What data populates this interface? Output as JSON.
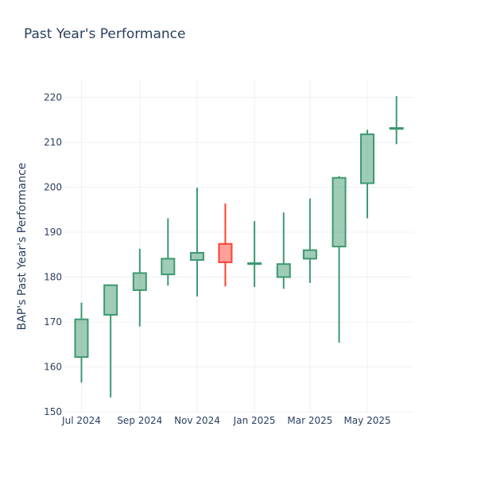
{
  "chart_data": {
    "type": "candlestick",
    "title": "Past Year's Performance",
    "xlabel": "",
    "ylabel": "BAP's Past Year's Performance",
    "ylim": [
      150,
      224
    ],
    "yticks": [
      150,
      160,
      170,
      180,
      190,
      200,
      210,
      220
    ],
    "xticks": [
      {
        "date": "2024-07-01",
        "label": "Jul 2024"
      },
      {
        "date": "2024-09-01",
        "label": "Sep 2024"
      },
      {
        "date": "2024-11-01",
        "label": "Nov 2024"
      },
      {
        "date": "2025-01-01",
        "label": "Jan 2025"
      },
      {
        "date": "2025-03-01",
        "label": "Mar 2025"
      },
      {
        "date": "2025-05-01",
        "label": "May 2025"
      }
    ],
    "xlim": [
      "2024-06-12",
      "2025-06-19"
    ],
    "grid": true,
    "increasing_color": "#3d9970",
    "decreasing_color": "#ff4136",
    "candles": [
      {
        "date": "2024-07-01",
        "open": 162.2,
        "high": 174.3,
        "low": 156.5,
        "close": 170.6
      },
      {
        "date": "2024-08-01",
        "open": 171.6,
        "high": 178.3,
        "low": 153.2,
        "close": 178.2
      },
      {
        "date": "2024-09-01",
        "open": 177.1,
        "high": 186.3,
        "low": 169.0,
        "close": 180.9
      },
      {
        "date": "2024-10-01",
        "open": 180.6,
        "high": 193.1,
        "low": 178.1,
        "close": 184.1
      },
      {
        "date": "2024-11-01",
        "open": 183.8,
        "high": 199.9,
        "low": 175.7,
        "close": 185.4
      },
      {
        "date": "2024-12-01",
        "open": 187.4,
        "high": 196.4,
        "low": 177.9,
        "close": 183.3
      },
      {
        "date": "2025-01-01",
        "open": 182.9,
        "high": 192.5,
        "low": 177.8,
        "close": 183.1
      },
      {
        "date": "2025-02-01",
        "open": 180.0,
        "high": 194.4,
        "low": 177.4,
        "close": 182.9
      },
      {
        "date": "2025-03-01",
        "open": 184.1,
        "high": 197.5,
        "low": 178.7,
        "close": 186.0
      },
      {
        "date": "2025-04-01",
        "open": 186.8,
        "high": 202.5,
        "low": 165.4,
        "close": 202.1
      },
      {
        "date": "2025-05-01",
        "open": 200.9,
        "high": 212.8,
        "low": 193.1,
        "close": 211.8
      },
      {
        "date": "2025-06-01",
        "open": 213.0,
        "high": 220.3,
        "low": 209.6,
        "close": 213.2
      }
    ]
  }
}
